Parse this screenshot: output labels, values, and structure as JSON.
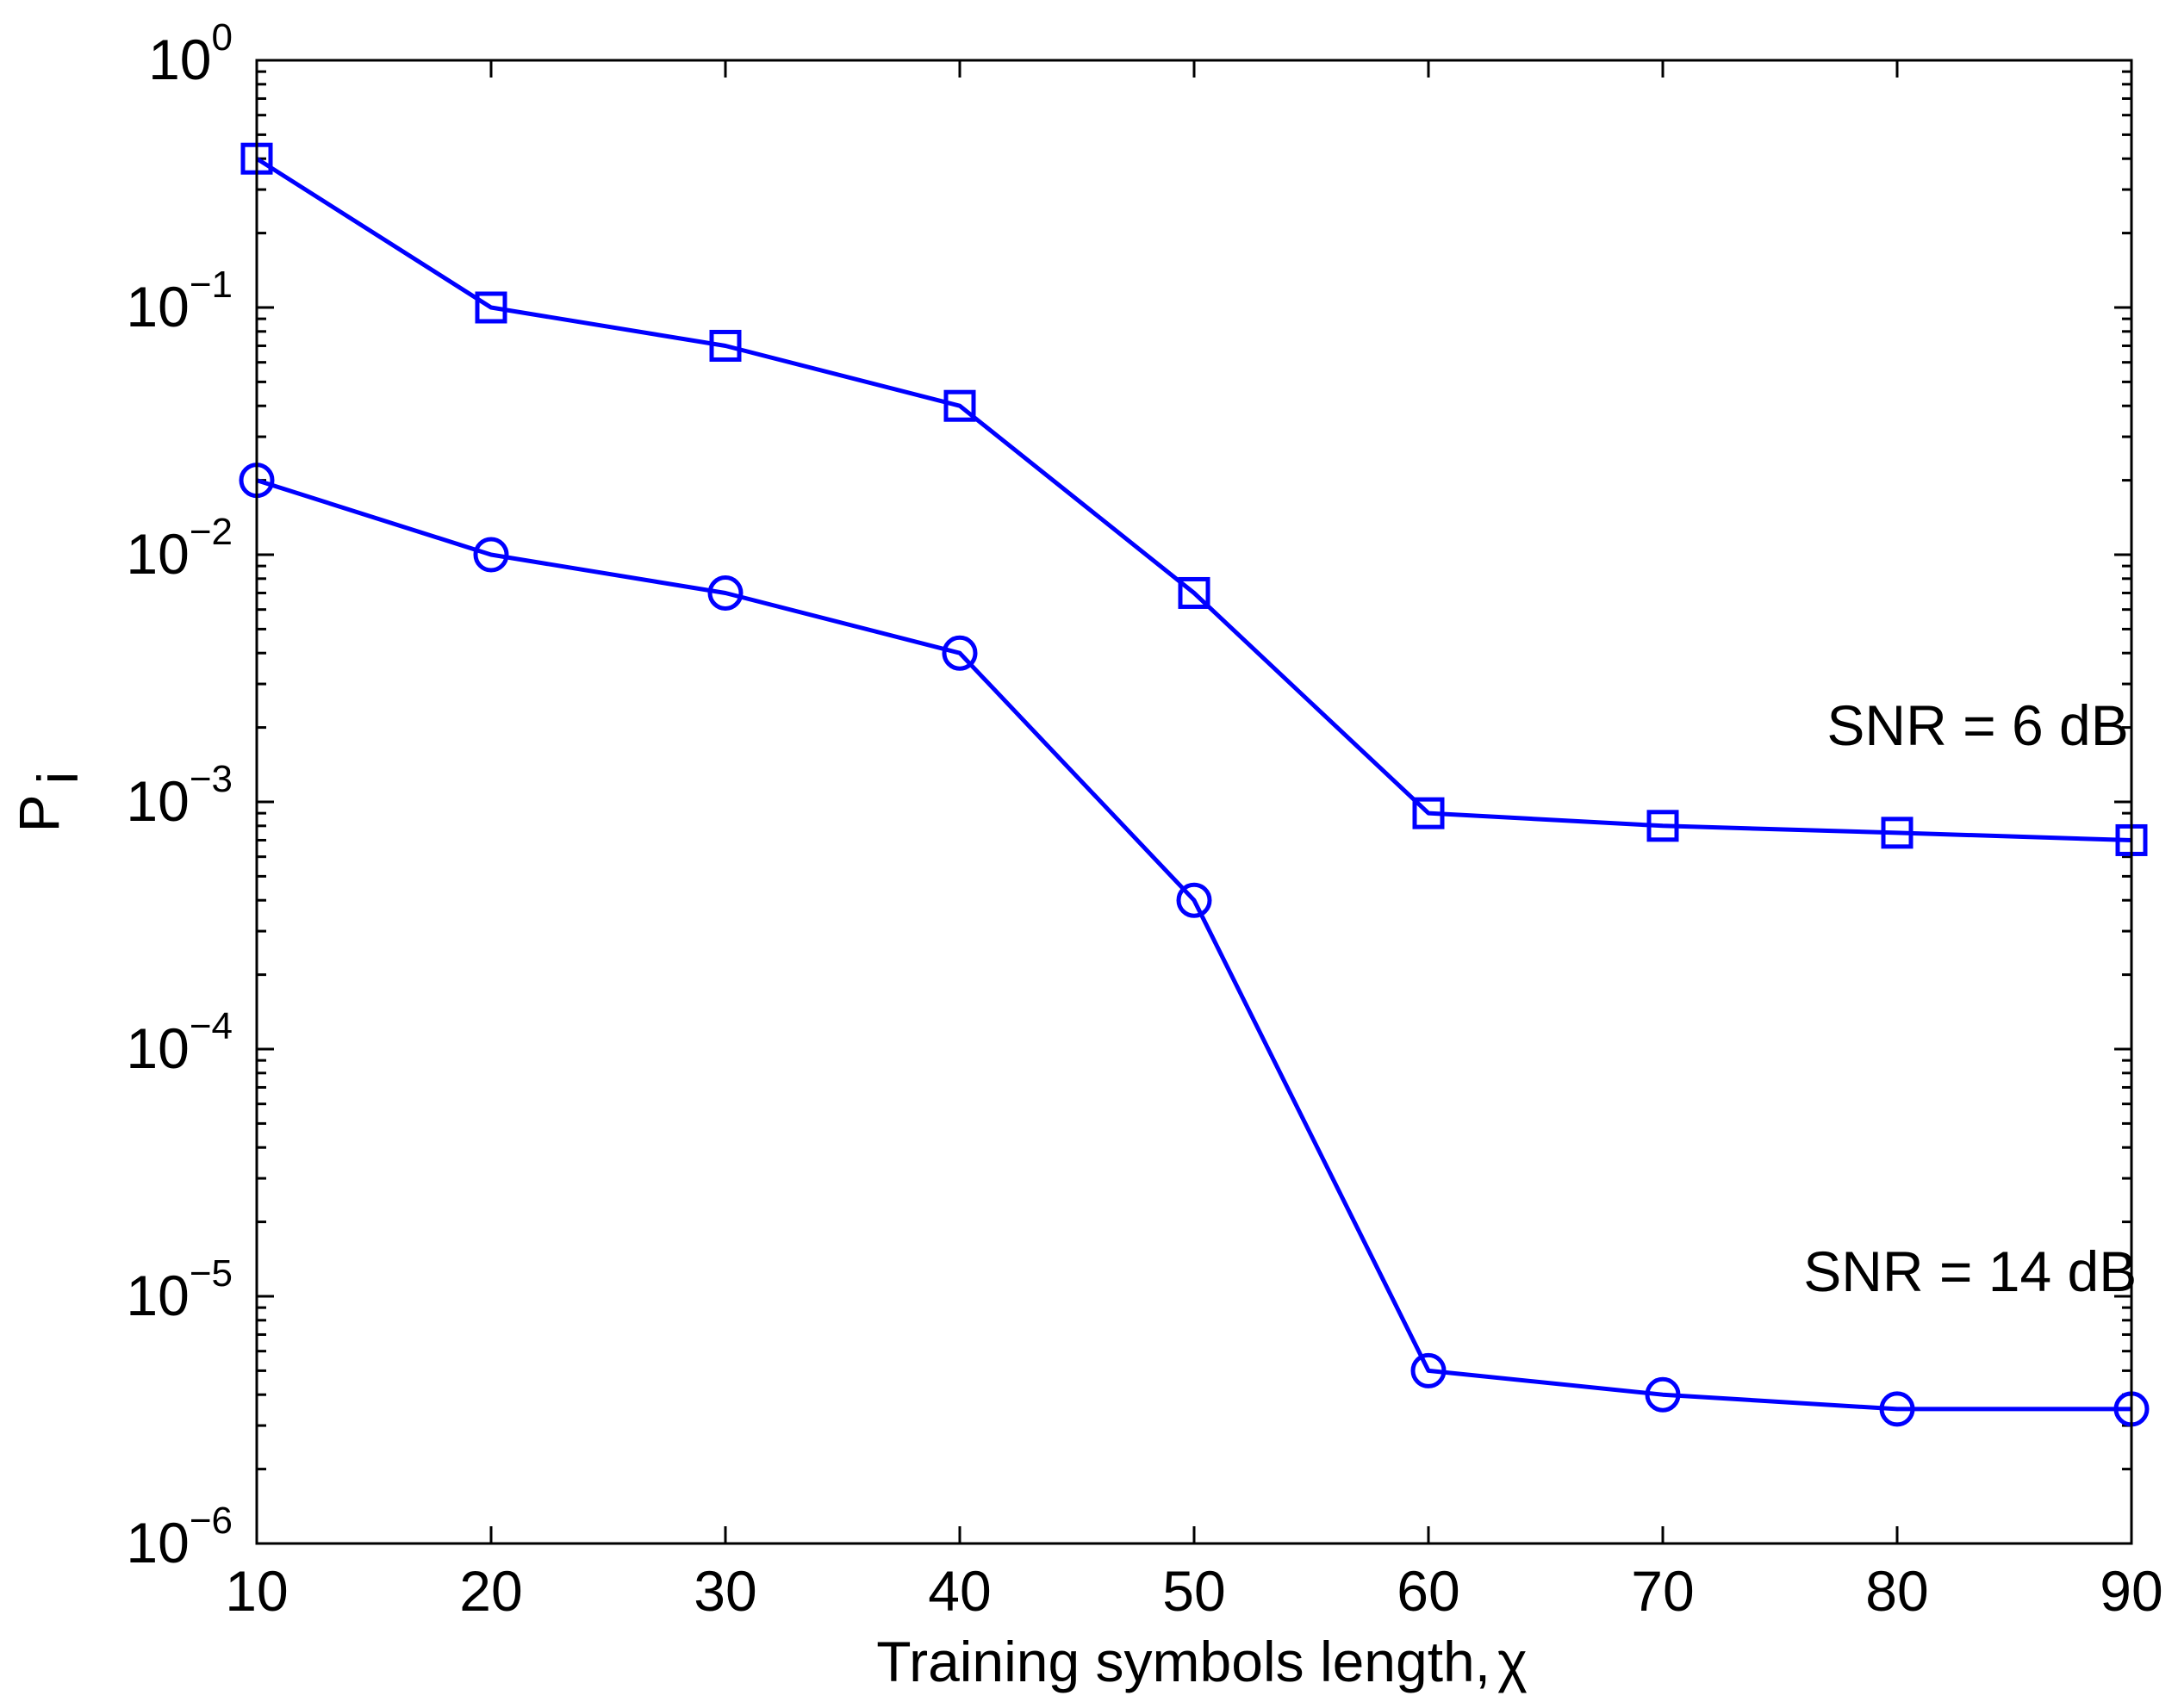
{
  "chart_data": {
    "type": "line",
    "title": "",
    "xlabel": "Training symbols length,",
    "xlabel_symbol": "χ",
    "ylabel_main": "P",
    "ylabel_sub": "i",
    "xlim": [
      10,
      90
    ],
    "ylim": [
      1e-06,
      1
    ],
    "yscale": "log",
    "grid": false,
    "x": [
      10,
      20,
      30,
      40,
      50,
      60,
      70,
      80,
      90
    ],
    "x_tick_labels": [
      "10",
      "20",
      "30",
      "40",
      "50",
      "60",
      "70",
      "80",
      "90"
    ],
    "y_ticks": [
      {
        "value": 1e-06,
        "base": "10",
        "exp": "−6"
      },
      {
        "value": 1e-05,
        "base": "10",
        "exp": "−5"
      },
      {
        "value": 0.0001,
        "base": "10",
        "exp": "−4"
      },
      {
        "value": 0.001,
        "base": "10",
        "exp": "−3"
      },
      {
        "value": 0.01,
        "base": "10",
        "exp": "−2"
      },
      {
        "value": 0.1,
        "base": "10",
        "exp": "−1"
      },
      {
        "value": 1,
        "base": "10",
        "exp": "0"
      }
    ],
    "series": [
      {
        "name": "SNR = 6 dB",
        "marker": "square",
        "color": "#0000ff",
        "values": [
          0.4,
          0.1,
          0.07,
          0.04,
          0.007,
          0.0009,
          0.0008,
          0.00075,
          0.0007
        ]
      },
      {
        "name": "SNR = 14 dB",
        "marker": "circle",
        "color": "#0000ff",
        "values": [
          0.02,
          0.01,
          0.007,
          0.004,
          0.0004,
          5e-06,
          4e-06,
          3.5e-06,
          3.5e-06
        ]
      }
    ],
    "annotations": [
      {
        "text": "SNR = 6 dB",
        "x": 77,
        "y": 0.0017
      },
      {
        "text": "SNR = 14 dB",
        "x": 76,
        "y": 1.05e-05
      }
    ]
  }
}
